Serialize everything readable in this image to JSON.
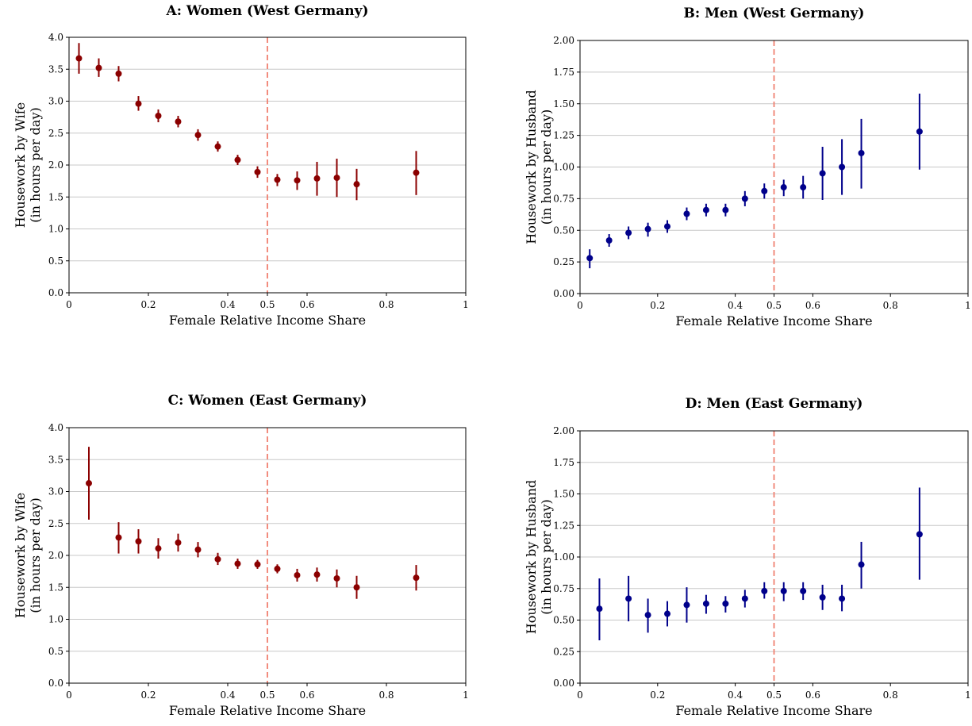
{
  "chart_data": [
    {
      "type": "scatter",
      "title": "A: Women (West Germany)",
      "xlabel": "Female Relative Income Share",
      "ylabel": [
        "Housework by Wife",
        "(in hours per day)"
      ],
      "xlim": [
        0,
        1
      ],
      "ylim": [
        0,
        4
      ],
      "xticks": [
        "0",
        "0.2",
        "0.4",
        "0.5",
        "0.6",
        "0.8",
        "1"
      ],
      "xtick_values": [
        0,
        0.2,
        0.4,
        0.5,
        0.6,
        0.8,
        1
      ],
      "yticks": [
        "0.0",
        "0.5",
        "1.0",
        "1.5",
        "2.0",
        "2.5",
        "3.0",
        "3.5",
        "4.0"
      ],
      "ytick_values": [
        0,
        0.5,
        1,
        1.5,
        2,
        2.5,
        3,
        3.5,
        4
      ],
      "grid": "horizontal",
      "reference_line_x": 0.5,
      "color": "#8b0000",
      "points": [
        {
          "x": 0.025,
          "y": 3.67,
          "lo": 3.43,
          "hi": 3.91
        },
        {
          "x": 0.075,
          "y": 3.52,
          "lo": 3.38,
          "hi": 3.67
        },
        {
          "x": 0.125,
          "y": 3.43,
          "lo": 3.31,
          "hi": 3.55
        },
        {
          "x": 0.175,
          "y": 2.96,
          "lo": 2.85,
          "hi": 3.08
        },
        {
          "x": 0.225,
          "y": 2.77,
          "lo": 2.67,
          "hi": 2.87
        },
        {
          "x": 0.275,
          "y": 2.68,
          "lo": 2.59,
          "hi": 2.77
        },
        {
          "x": 0.325,
          "y": 2.47,
          "lo": 2.38,
          "hi": 2.56
        },
        {
          "x": 0.375,
          "y": 2.29,
          "lo": 2.21,
          "hi": 2.37
        },
        {
          "x": 0.425,
          "y": 2.08,
          "lo": 2.0,
          "hi": 2.16
        },
        {
          "x": 0.475,
          "y": 1.89,
          "lo": 1.8,
          "hi": 1.98
        },
        {
          "x": 0.525,
          "y": 1.77,
          "lo": 1.67,
          "hi": 1.86
        },
        {
          "x": 0.575,
          "y": 1.76,
          "lo": 1.61,
          "hi": 1.9
        },
        {
          "x": 0.625,
          "y": 1.79,
          "lo": 1.52,
          "hi": 2.05
        },
        {
          "x": 0.675,
          "y": 1.8,
          "lo": 1.5,
          "hi": 2.1
        },
        {
          "x": 0.725,
          "y": 1.7,
          "lo": 1.45,
          "hi": 1.94
        },
        {
          "x": 0.875,
          "y": 1.88,
          "lo": 1.53,
          "hi": 2.22
        }
      ]
    },
    {
      "type": "scatter",
      "title": "B: Men (West Germany)",
      "xlabel": "Female Relative Income Share",
      "ylabel": [
        "Housework by Husband",
        "(in hours per day)"
      ],
      "xlim": [
        0,
        1
      ],
      "ylim": [
        0,
        2
      ],
      "xticks": [
        "0",
        "0.2",
        "0.4",
        "0.5",
        "0.6",
        "0.8",
        "1"
      ],
      "xtick_values": [
        0,
        0.2,
        0.4,
        0.5,
        0.6,
        0.8,
        1
      ],
      "yticks": [
        "0.00",
        "0.25",
        "0.50",
        "0.75",
        "1.00",
        "1.25",
        "1.50",
        "1.75",
        "2.00"
      ],
      "ytick_values": [
        0,
        0.25,
        0.5,
        0.75,
        1,
        1.25,
        1.5,
        1.75,
        2
      ],
      "grid": "horizontal",
      "reference_line_x": 0.5,
      "color": "#00008b",
      "points": [
        {
          "x": 0.025,
          "y": 0.28,
          "lo": 0.2,
          "hi": 0.35
        },
        {
          "x": 0.075,
          "y": 0.42,
          "lo": 0.37,
          "hi": 0.47
        },
        {
          "x": 0.125,
          "y": 0.48,
          "lo": 0.43,
          "hi": 0.53
        },
        {
          "x": 0.175,
          "y": 0.51,
          "lo": 0.45,
          "hi": 0.56
        },
        {
          "x": 0.225,
          "y": 0.53,
          "lo": 0.48,
          "hi": 0.58
        },
        {
          "x": 0.275,
          "y": 0.63,
          "lo": 0.58,
          "hi": 0.68
        },
        {
          "x": 0.325,
          "y": 0.66,
          "lo": 0.61,
          "hi": 0.71
        },
        {
          "x": 0.375,
          "y": 0.66,
          "lo": 0.61,
          "hi": 0.71
        },
        {
          "x": 0.425,
          "y": 0.75,
          "lo": 0.69,
          "hi": 0.81
        },
        {
          "x": 0.475,
          "y": 0.81,
          "lo": 0.75,
          "hi": 0.87
        },
        {
          "x": 0.525,
          "y": 0.84,
          "lo": 0.77,
          "hi": 0.9
        },
        {
          "x": 0.575,
          "y": 0.84,
          "lo": 0.75,
          "hi": 0.93
        },
        {
          "x": 0.625,
          "y": 0.95,
          "lo": 0.74,
          "hi": 1.16
        },
        {
          "x": 0.675,
          "y": 1.0,
          "lo": 0.78,
          "hi": 1.22
        },
        {
          "x": 0.725,
          "y": 1.11,
          "lo": 0.83,
          "hi": 1.38
        },
        {
          "x": 0.875,
          "y": 1.28,
          "lo": 0.98,
          "hi": 1.58
        }
      ]
    },
    {
      "type": "scatter",
      "title": "C: Women (East Germany)",
      "xlabel": "Female Relative Income Share",
      "ylabel": [
        "Housework by Wife",
        "(in hours per day)"
      ],
      "xlim": [
        0,
        1
      ],
      "ylim": [
        0,
        4
      ],
      "xticks": [
        "0",
        "0.2",
        "0.4",
        "0.5",
        "0.6",
        "0.8",
        "1"
      ],
      "xtick_values": [
        0,
        0.2,
        0.4,
        0.5,
        0.6,
        0.8,
        1
      ],
      "yticks": [
        "0.0",
        "0.5",
        "1.0",
        "1.5",
        "2.0",
        "2.5",
        "3.0",
        "3.5",
        "4.0"
      ],
      "ytick_values": [
        0,
        0.5,
        1,
        1.5,
        2,
        2.5,
        3,
        3.5,
        4
      ],
      "grid": "horizontal",
      "reference_line_x": 0.5,
      "color": "#8b0000",
      "points": [
        {
          "x": 0.05,
          "y": 3.13,
          "lo": 2.56,
          "hi": 3.7
        },
        {
          "x": 0.125,
          "y": 2.28,
          "lo": 2.03,
          "hi": 2.52
        },
        {
          "x": 0.175,
          "y": 2.22,
          "lo": 2.03,
          "hi": 2.41
        },
        {
          "x": 0.225,
          "y": 2.11,
          "lo": 1.95,
          "hi": 2.27
        },
        {
          "x": 0.275,
          "y": 2.2,
          "lo": 2.06,
          "hi": 2.34
        },
        {
          "x": 0.325,
          "y": 2.09,
          "lo": 1.97,
          "hi": 2.21
        },
        {
          "x": 0.375,
          "y": 1.94,
          "lo": 1.85,
          "hi": 2.04
        },
        {
          "x": 0.425,
          "y": 1.87,
          "lo": 1.79,
          "hi": 1.95
        },
        {
          "x": 0.475,
          "y": 1.86,
          "lo": 1.79,
          "hi": 1.93
        },
        {
          "x": 0.525,
          "y": 1.79,
          "lo": 1.72,
          "hi": 1.86
        },
        {
          "x": 0.575,
          "y": 1.69,
          "lo": 1.59,
          "hi": 1.79
        },
        {
          "x": 0.625,
          "y": 1.7,
          "lo": 1.59,
          "hi": 1.81
        },
        {
          "x": 0.675,
          "y": 1.64,
          "lo": 1.5,
          "hi": 1.78
        },
        {
          "x": 0.725,
          "y": 1.5,
          "lo": 1.32,
          "hi": 1.68
        },
        {
          "x": 0.875,
          "y": 1.65,
          "lo": 1.45,
          "hi": 1.85
        }
      ]
    },
    {
      "type": "scatter",
      "title": "D: Men (East Germany)",
      "xlabel": "Female Relative Income Share",
      "ylabel": [
        "Housework by Husband",
        "(in hours per day)"
      ],
      "xlim": [
        0,
        1
      ],
      "ylim": [
        0,
        2
      ],
      "xticks": [
        "0",
        "0.2",
        "0.4",
        "0.5",
        "0.6",
        "0.8",
        "1"
      ],
      "xtick_values": [
        0,
        0.2,
        0.4,
        0.5,
        0.6,
        0.8,
        1
      ],
      "yticks": [
        "0.00",
        "0.25",
        "0.50",
        "0.75",
        "1.00",
        "1.25",
        "1.50",
        "1.75",
        "2.00"
      ],
      "ytick_values": [
        0,
        0.25,
        0.5,
        0.75,
        1,
        1.25,
        1.5,
        1.75,
        2
      ],
      "grid": "horizontal",
      "reference_line_x": 0.5,
      "color": "#00008b",
      "points": [
        {
          "x": 0.05,
          "y": 0.59,
          "lo": 0.34,
          "hi": 0.83
        },
        {
          "x": 0.125,
          "y": 0.67,
          "lo": 0.49,
          "hi": 0.85
        },
        {
          "x": 0.175,
          "y": 0.54,
          "lo": 0.4,
          "hi": 0.67
        },
        {
          "x": 0.225,
          "y": 0.55,
          "lo": 0.45,
          "hi": 0.65
        },
        {
          "x": 0.275,
          "y": 0.62,
          "lo": 0.48,
          "hi": 0.76
        },
        {
          "x": 0.325,
          "y": 0.63,
          "lo": 0.55,
          "hi": 0.7
        },
        {
          "x": 0.375,
          "y": 0.63,
          "lo": 0.56,
          "hi": 0.69
        },
        {
          "x": 0.425,
          "y": 0.67,
          "lo": 0.6,
          "hi": 0.74
        },
        {
          "x": 0.475,
          "y": 0.73,
          "lo": 0.67,
          "hi": 0.8
        },
        {
          "x": 0.525,
          "y": 0.73,
          "lo": 0.65,
          "hi": 0.8
        },
        {
          "x": 0.575,
          "y": 0.73,
          "lo": 0.66,
          "hi": 0.8
        },
        {
          "x": 0.625,
          "y": 0.68,
          "lo": 0.58,
          "hi": 0.78
        },
        {
          "x": 0.675,
          "y": 0.67,
          "lo": 0.57,
          "hi": 0.78
        },
        {
          "x": 0.725,
          "y": 0.94,
          "lo": 0.75,
          "hi": 1.12
        },
        {
          "x": 0.875,
          "y": 1.18,
          "lo": 0.82,
          "hi": 1.55
        }
      ]
    }
  ]
}
